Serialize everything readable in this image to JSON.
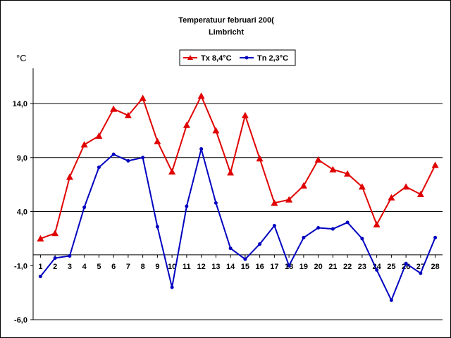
{
  "chart_data": {
    "type": "line",
    "title": "Temperatuur februari 200(",
    "subtitle": "Limbricht",
    "ylabel": "°C",
    "xlabel": "",
    "ylim": [
      -6,
      17
    ],
    "y_ticks": [
      -6,
      -1,
      4,
      9,
      14
    ],
    "y_tick_labels": [
      "-6,0",
      "-1,0",
      "4,0",
      "9,0",
      "14,0"
    ],
    "y_gridlines": [
      4,
      9,
      14
    ],
    "zero_line": 0,
    "x": [
      "1",
      "2",
      "3",
      "4",
      "5",
      "6",
      "7",
      "8",
      "9",
      "10",
      "11",
      "12",
      "13",
      "14",
      "15",
      "16",
      "17",
      "18",
      "19",
      "20",
      "21",
      "22",
      "23",
      "24",
      "25",
      "26",
      "27",
      "28"
    ],
    "legend_position": "top-center",
    "series": [
      {
        "name": "Tx 8,4°C",
        "color": "#e00000",
        "marker": "triangle",
        "values": [
          1.5,
          2.0,
          7.2,
          10.2,
          11.0,
          13.5,
          12.9,
          14.5,
          10.5,
          7.7,
          12.0,
          14.7,
          11.5,
          7.6,
          12.9,
          8.9,
          4.8,
          5.1,
          6.4,
          8.8,
          7.9,
          7.5,
          6.3,
          2.8,
          5.3,
          6.3,
          5.6,
          8.3
        ]
      },
      {
        "name": "Tn 2,3°C",
        "color": "#0000c0",
        "marker": "circle",
        "values": [
          -2.0,
          -0.3,
          -0.1,
          4.4,
          8.1,
          9.3,
          8.7,
          9.0,
          2.6,
          -3.0,
          4.5,
          9.8,
          4.8,
          0.6,
          -0.4,
          1.0,
          2.7,
          -1.0,
          1.6,
          2.5,
          2.4,
          3.0,
          1.5,
          -1.4,
          -4.2,
          -0.8,
          -1.7,
          1.6
        ]
      }
    ]
  }
}
